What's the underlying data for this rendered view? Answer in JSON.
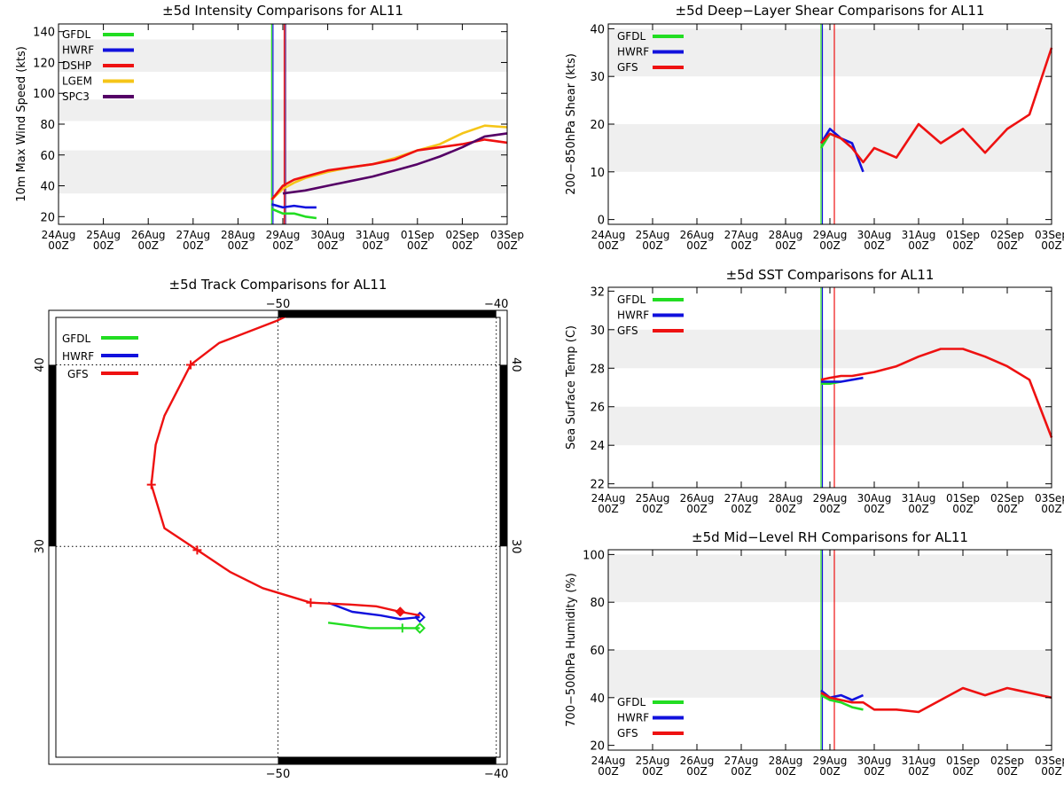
{
  "colors": {
    "GFDL": "#22dd22",
    "HWRF": "#1111dd",
    "DSHP": "#ee1111",
    "LGEM": "#f5c518",
    "SPC3": "#550066",
    "GFS": "#ee1111",
    "band": "#efefef"
  },
  "time_ticks": {
    "days": [
      "24Aug",
      "25Aug",
      "26Aug",
      "27Aug",
      "28Aug",
      "29Aug",
      "30Aug",
      "31Aug",
      "01Sep",
      "02Sep",
      "03Sep"
    ],
    "hour": "00Z"
  },
  "chart_data": [
    {
      "id": "intensity",
      "type": "line",
      "title": "±5d Intensity Comparisons for AL11",
      "ylabel": "10m Max Wind Speed (kts)",
      "xlim": [
        0,
        10
      ],
      "ylim": [
        15,
        145
      ],
      "yticks": [
        20,
        40,
        60,
        80,
        100,
        120,
        140
      ],
      "bands": [
        [
          35,
          63
        ],
        [
          82,
          96
        ],
        [
          114,
          135
        ]
      ],
      "vlines": [
        {
          "x": 4.75,
          "color": "GFDL"
        },
        {
          "x": 4.78,
          "color": "HWRF"
        },
        {
          "x": 5.03,
          "color": "DSHP"
        },
        {
          "x": 5.06,
          "color": "SPC3"
        }
      ],
      "legend": [
        "GFDL",
        "HWRF",
        "DSHP",
        "LGEM",
        "SPC3"
      ],
      "series": [
        {
          "name": "GFDL",
          "x": [
            4.75,
            5.0,
            5.25,
            5.5,
            5.75
          ],
          "y": [
            25,
            22,
            22,
            20,
            19
          ]
        },
        {
          "name": "HWRF",
          "x": [
            4.75,
            5.0,
            5.25,
            5.5,
            5.75
          ],
          "y": [
            28,
            26,
            27,
            26,
            26
          ]
        },
        {
          "name": "LGEM",
          "x": [
            4.75,
            5.0,
            5.25,
            5.5,
            6.0,
            6.5,
            7.0,
            7.5,
            8.0,
            8.5,
            9.0,
            9.5,
            10.0
          ],
          "y": [
            31,
            38,
            42,
            45,
            49,
            52,
            54,
            58,
            63,
            67,
            74,
            79,
            78
          ]
        },
        {
          "name": "DSHP",
          "x": [
            4.75,
            5.0,
            5.25,
            5.5,
            6.0,
            6.5,
            7.0,
            7.5,
            8.0,
            8.5,
            9.0,
            9.5,
            10.0
          ],
          "y": [
            31,
            40,
            44,
            46,
            50,
            52,
            54,
            57,
            63,
            65,
            67,
            70,
            68
          ]
        },
        {
          "name": "SPC3",
          "x": [
            5.0,
            5.5,
            6.0,
            6.5,
            7.0,
            7.5,
            8.0,
            8.5,
            9.0,
            9.5,
            10.0
          ],
          "y": [
            35,
            37,
            40,
            43,
            46,
            50,
            54,
            59,
            65,
            72,
            74
          ]
        }
      ]
    },
    {
      "id": "shear",
      "type": "line",
      "title": "±5d Deep−Layer Shear Comparisons for AL11",
      "ylabel": "200−850hPa Shear (kts)",
      "xlim": [
        0,
        10
      ],
      "ylim": [
        -1,
        41
      ],
      "yticks": [
        0,
        10,
        20,
        30,
        40
      ],
      "bands": [
        [
          10,
          20
        ],
        [
          30,
          40
        ]
      ],
      "vlines": [
        {
          "x": 4.8,
          "color": "GFDL"
        },
        {
          "x": 4.83,
          "color": "HWRF"
        },
        {
          "x": 5.1,
          "color": "GFS"
        }
      ],
      "legend": [
        "GFDL",
        "HWRF",
        "GFS"
      ],
      "series": [
        {
          "name": "GFDL",
          "x": [
            4.8,
            5.0,
            5.25
          ],
          "y": [
            15,
            18,
            17
          ]
        },
        {
          "name": "HWRF",
          "x": [
            4.8,
            5.0,
            5.25,
            5.5,
            5.75
          ],
          "y": [
            16,
            19,
            17,
            16,
            10
          ]
        },
        {
          "name": "GFS",
          "x": [
            4.8,
            5.0,
            5.25,
            5.5,
            5.75,
            6.0,
            6.5,
            7.0,
            7.5,
            8.0,
            8.5,
            9.0,
            9.5,
            10.0
          ],
          "y": [
            16,
            18,
            17,
            15,
            12,
            15,
            13,
            20,
            16,
            19,
            14,
            19,
            22,
            36
          ]
        }
      ]
    },
    {
      "id": "sst",
      "type": "line",
      "title": "±5d SST Comparisons for AL11",
      "ylabel": "Sea Surface Temp (C)",
      "xlim": [
        0,
        10
      ],
      "ylim": [
        21.8,
        32.2
      ],
      "yticks": [
        22,
        24,
        26,
        28,
        30,
        32
      ],
      "bands": [
        [
          24,
          26
        ],
        [
          28,
          30
        ]
      ],
      "vlines": [
        {
          "x": 4.8,
          "color": "GFDL"
        },
        {
          "x": 4.83,
          "color": "HWRF"
        },
        {
          "x": 5.1,
          "color": "GFS"
        }
      ],
      "legend": [
        "GFDL",
        "HWRF",
        "GFS"
      ],
      "series": [
        {
          "name": "GFDL",
          "x": [
            4.8,
            5.0,
            5.25
          ],
          "y": [
            27.2,
            27.2,
            27.3
          ]
        },
        {
          "name": "HWRF",
          "x": [
            4.8,
            5.0,
            5.25,
            5.5,
            5.75
          ],
          "y": [
            27.3,
            27.3,
            27.3,
            27.4,
            27.5
          ]
        },
        {
          "name": "GFS",
          "x": [
            4.8,
            5.0,
            5.25,
            5.5,
            6.0,
            6.5,
            7.0,
            7.5,
            8.0,
            8.5,
            9.0,
            9.5,
            10.0
          ],
          "y": [
            27.4,
            27.5,
            27.6,
            27.6,
            27.8,
            28.1,
            28.6,
            29.0,
            29.0,
            28.6,
            28.1,
            27.4,
            24.4
          ]
        }
      ]
    },
    {
      "id": "rh",
      "type": "line",
      "title": "±5d Mid−Level RH Comparisons for AL11",
      "ylabel": "700−500hPa Humidity (%)",
      "xlim": [
        0,
        10
      ],
      "ylim": [
        18,
        102
      ],
      "yticks": [
        20,
        40,
        60,
        80,
        100
      ],
      "bands": [
        [
          40,
          60
        ],
        [
          80,
          100
        ]
      ],
      "vlines": [
        {
          "x": 4.8,
          "color": "GFDL"
        },
        {
          "x": 4.83,
          "color": "HWRF"
        },
        {
          "x": 5.1,
          "color": "GFS"
        }
      ],
      "legend": [
        "GFDL",
        "HWRF",
        "GFS"
      ],
      "series": [
        {
          "name": "GFDL",
          "x": [
            4.8,
            5.0,
            5.25,
            5.5,
            5.75
          ],
          "y": [
            41,
            39,
            38,
            36,
            35
          ]
        },
        {
          "name": "HWRF",
          "x": [
            4.8,
            5.0,
            5.25,
            5.5,
            5.75
          ],
          "y": [
            43,
            40,
            41,
            39,
            41
          ]
        },
        {
          "name": "GFS",
          "x": [
            4.8,
            5.0,
            5.25,
            5.5,
            5.75,
            6.0,
            6.5,
            7.0,
            7.5,
            8.0,
            8.5,
            9.0,
            9.5,
            10.0
          ],
          "y": [
            42,
            40,
            39,
            38,
            38,
            35,
            35,
            34,
            39,
            44,
            41,
            44,
            42,
            40
          ]
        }
      ]
    },
    {
      "id": "track",
      "type": "line",
      "title": "±5d Track Comparisons for AL11",
      "lon_range": [
        -60.5,
        -39.5
      ],
      "lat_range": [
        18,
        43
      ],
      "lon_ticks": [
        -50,
        -40
      ],
      "lat_ticks": [
        30,
        40
      ],
      "lon_tick_labels": [
        "−50",
        "−40"
      ],
      "lat_tick_labels": [
        "30",
        "40"
      ],
      "legend": [
        "GFDL",
        "HWRF",
        "GFS"
      ],
      "series": [
        {
          "name": "GFDL",
          "lon": [
            -47.7,
            -45.8,
            -44.3,
            -43.5
          ],
          "lat": [
            25.8,
            25.5,
            25.5,
            25.5
          ],
          "marks": [
            2
          ],
          "end": [
            -43.5,
            25.5
          ]
        },
        {
          "name": "HWRF",
          "lon": [
            -47.7,
            -46.6,
            -45.3,
            -44.4,
            -43.5
          ],
          "lat": [
            26.9,
            26.4,
            26.2,
            26.0,
            26.1
          ],
          "marks": [],
          "end": [
            -43.5,
            26.1
          ]
        },
        {
          "name": "GFS",
          "lon": [
            -43.5,
            -44.4,
            -45.5,
            -46.7,
            -48.5,
            -50.7,
            -52.2,
            -53.7,
            -55.2,
            -55.8,
            -55.6,
            -55.2,
            -54.0,
            -52.7,
            -50.1,
            -48.0,
            -45.8
          ],
          "lat": [
            26.2,
            26.4,
            26.7,
            26.8,
            26.9,
            27.7,
            28.6,
            29.8,
            31.0,
            33.4,
            35.6,
            37.2,
            40.0,
            41.2,
            42.4,
            43.6,
            45.2
          ],
          "marks": [
            1,
            4,
            7,
            9,
            12,
            16
          ]
        }
      ]
    }
  ]
}
